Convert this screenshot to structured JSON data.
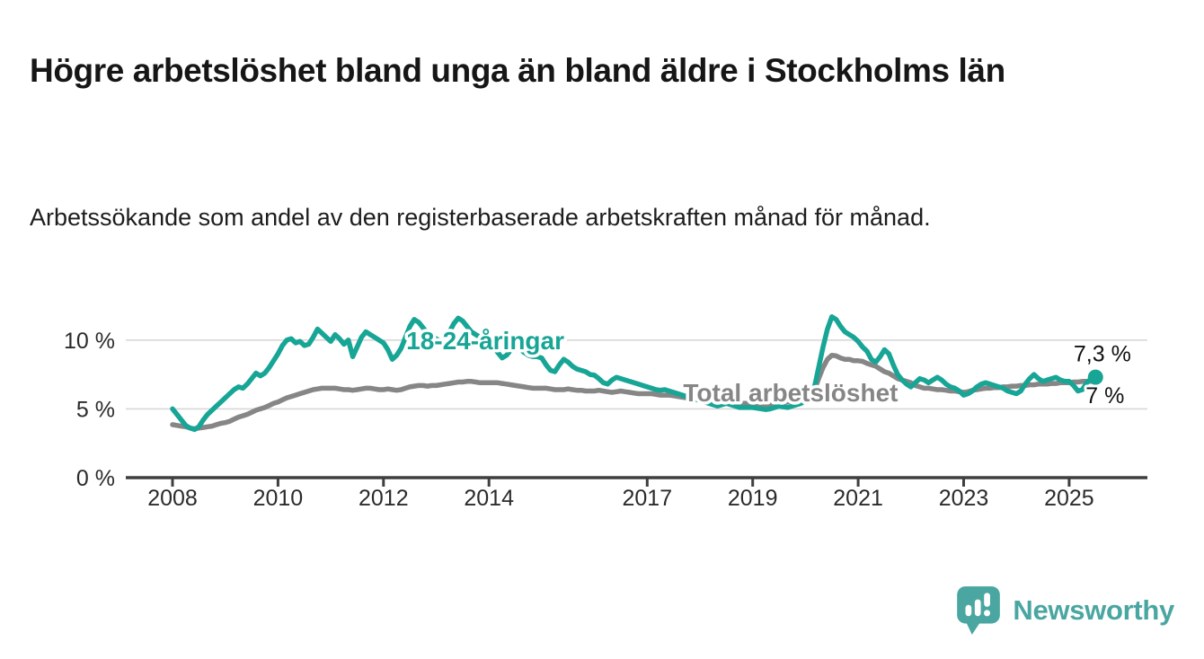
{
  "page": {
    "title": "Högre arbetslöshet bland unga än bland äldre i Stockholms län",
    "subtitle": "Arbetssökande som andel av den registerbaserade arbetskraften månad för månad."
  },
  "branding": {
    "name": "Newsworthy",
    "icon": "bar-chart-speech-bubble-icon",
    "color": "#4aa6a1"
  },
  "colors": {
    "youth_line": "#17a596",
    "total_line": "#868686",
    "gridline": "#d7d7d7",
    "axis": "#3f3f3f",
    "tick_text": "#2b2b2b",
    "annotation_text": "#111111"
  },
  "chart_data": {
    "type": "line",
    "unit": "%",
    "grid": "horizontal",
    "x_start_year": 2008,
    "points_per_year": 12,
    "ylim": [
      0,
      12.5
    ],
    "x_ticks": [
      {
        "year": 2008,
        "label": "2008"
      },
      {
        "year": 2010,
        "label": "2010"
      },
      {
        "year": 2012,
        "label": "2012"
      },
      {
        "year": 2014,
        "label": "2014"
      },
      {
        "year": 2017,
        "label": "2017"
      },
      {
        "year": 2019,
        "label": "2019"
      },
      {
        "year": 2021,
        "label": "2021"
      },
      {
        "year": 2023,
        "label": "2023"
      },
      {
        "year": 2025,
        "label": "2025"
      }
    ],
    "y_ticks": [
      {
        "value": 0,
        "label": "0 %"
      },
      {
        "value": 5,
        "label": "5 %"
      },
      {
        "value": 10,
        "label": "10 %"
      }
    ],
    "series": [
      {
        "name": "Total arbetslöshet",
        "color": "#868686",
        "label_pos": {
          "year": 2019.72,
          "pct": 6.2
        },
        "end_dot": false,
        "values": [
          3.85,
          3.8,
          3.75,
          3.7,
          3.6,
          3.55,
          3.6,
          3.65,
          3.7,
          3.75,
          3.85,
          3.95,
          4.0,
          4.1,
          4.25,
          4.4,
          4.5,
          4.6,
          4.75,
          4.9,
          5.0,
          5.1,
          5.25,
          5.4,
          5.5,
          5.65,
          5.8,
          5.9,
          6.0,
          6.1,
          6.2,
          6.3,
          6.4,
          6.45,
          6.5,
          6.5,
          6.5,
          6.5,
          6.45,
          6.4,
          6.4,
          6.35,
          6.4,
          6.45,
          6.5,
          6.5,
          6.45,
          6.4,
          6.4,
          6.45,
          6.4,
          6.35,
          6.4,
          6.5,
          6.6,
          6.65,
          6.7,
          6.7,
          6.65,
          6.7,
          6.7,
          6.75,
          6.8,
          6.85,
          6.9,
          6.95,
          6.95,
          7.0,
          7.0,
          6.95,
          6.9,
          6.9,
          6.9,
          6.9,
          6.9,
          6.85,
          6.8,
          6.75,
          6.7,
          6.65,
          6.6,
          6.55,
          6.5,
          6.5,
          6.5,
          6.5,
          6.45,
          6.4,
          6.4,
          6.4,
          6.45,
          6.4,
          6.35,
          6.35,
          6.3,
          6.3,
          6.3,
          6.35,
          6.3,
          6.25,
          6.2,
          6.25,
          6.3,
          6.25,
          6.2,
          6.15,
          6.1,
          6.1,
          6.1,
          6.1,
          6.05,
          6.0,
          6.0,
          6.0,
          5.95,
          5.9,
          5.85,
          5.8,
          5.75,
          5.7,
          5.65,
          5.6,
          5.55,
          5.5,
          5.5,
          5.5,
          5.5,
          5.45,
          5.4,
          5.4,
          5.4,
          5.4,
          5.4,
          5.4,
          5.35,
          5.3,
          5.3,
          5.35,
          5.4,
          5.45,
          5.5,
          5.55,
          5.6,
          5.7,
          5.8,
          5.9,
          6.3,
          7.2,
          8.0,
          8.6,
          8.9,
          8.85,
          8.7,
          8.6,
          8.6,
          8.5,
          8.5,
          8.45,
          8.3,
          8.2,
          8.1,
          7.9,
          7.7,
          7.6,
          7.4,
          7.2,
          7.1,
          7.0,
          6.9,
          6.7,
          6.6,
          6.5,
          6.5,
          6.45,
          6.4,
          6.4,
          6.35,
          6.3,
          6.3,
          6.25,
          6.2,
          6.25,
          6.35,
          6.4,
          6.45,
          6.5,
          6.5,
          6.55,
          6.55,
          6.6,
          6.6,
          6.65,
          6.65,
          6.7,
          6.7,
          6.75,
          6.75,
          6.8,
          6.8,
          6.8,
          6.85,
          6.85,
          6.9,
          6.9,
          6.9,
          6.95,
          6.95,
          7.0,
          7.0,
          7.0,
          7.0
        ]
      },
      {
        "name": "18-24-åringar",
        "color": "#17a596",
        "label_pos": {
          "year": 2013.93,
          "pct": 10.0
        },
        "end_dot": true,
        "values": [
          5.0,
          4.6,
          4.2,
          3.8,
          3.6,
          3.5,
          3.7,
          4.2,
          4.6,
          4.9,
          5.2,
          5.5,
          5.8,
          6.1,
          6.4,
          6.6,
          6.5,
          6.8,
          7.2,
          7.6,
          7.4,
          7.6,
          8.0,
          8.5,
          9.0,
          9.6,
          10.0,
          10.1,
          9.8,
          9.9,
          9.6,
          9.7,
          10.2,
          10.8,
          10.5,
          10.2,
          9.9,
          10.4,
          10.1,
          9.7,
          10.0,
          8.8,
          9.5,
          10.2,
          10.6,
          10.4,
          10.2,
          10.0,
          9.8,
          9.3,
          8.6,
          8.9,
          9.4,
          10.2,
          11.0,
          11.5,
          11.3,
          10.9,
          10.5,
          10.3,
          10.1,
          9.9,
          10.2,
          10.6,
          11.2,
          11.6,
          11.4,
          11.0,
          10.6,
          10.4,
          10.2,
          10.0,
          9.8,
          9.5,
          9.1,
          8.7,
          8.9,
          9.3,
          9.6,
          9.4,
          9.1,
          8.9,
          8.8,
          8.8,
          8.7,
          8.2,
          7.8,
          7.7,
          8.2,
          8.6,
          8.4,
          8.1,
          7.9,
          7.8,
          7.7,
          7.5,
          7.45,
          7.2,
          6.9,
          6.8,
          7.1,
          7.3,
          7.2,
          7.1,
          7.0,
          6.9,
          6.8,
          6.7,
          6.6,
          6.5,
          6.4,
          6.35,
          6.4,
          6.3,
          6.2,
          6.1,
          6.0,
          5.9,
          5.8,
          5.7,
          5.6,
          5.5,
          5.4,
          5.3,
          5.2,
          5.3,
          5.4,
          5.3,
          5.2,
          5.1,
          5.1,
          5.1,
          5.1,
          5.05,
          5.0,
          4.95,
          5.0,
          5.1,
          5.2,
          5.15,
          5.1,
          5.2,
          5.3,
          5.4,
          5.6,
          5.8,
          6.5,
          8.0,
          9.5,
          10.8,
          11.7,
          11.5,
          11.0,
          10.6,
          10.4,
          10.2,
          9.9,
          9.5,
          9.2,
          8.6,
          8.4,
          8.8,
          9.3,
          9.0,
          8.2,
          7.5,
          7.1,
          6.8,
          6.6,
          6.9,
          7.2,
          7.1,
          6.9,
          7.1,
          7.3,
          7.1,
          6.8,
          6.6,
          6.5,
          6.3,
          6.0,
          6.1,
          6.3,
          6.6,
          6.8,
          6.9,
          6.8,
          6.7,
          6.6,
          6.5,
          6.3,
          6.2,
          6.1,
          6.3,
          6.8,
          7.2,
          7.5,
          7.2,
          7.0,
          7.1,
          7.2,
          7.3,
          7.1,
          7.0,
          7.0,
          6.7,
          6.3,
          6.4,
          6.9,
          7.2,
          7.3
        ]
      }
    ],
    "annotations": [
      {
        "text": "7,3 %",
        "year": 2025.63,
        "pct": 9.05
      },
      {
        "text": "7 %",
        "year": 2025.68,
        "pct": 6.0
      }
    ]
  }
}
